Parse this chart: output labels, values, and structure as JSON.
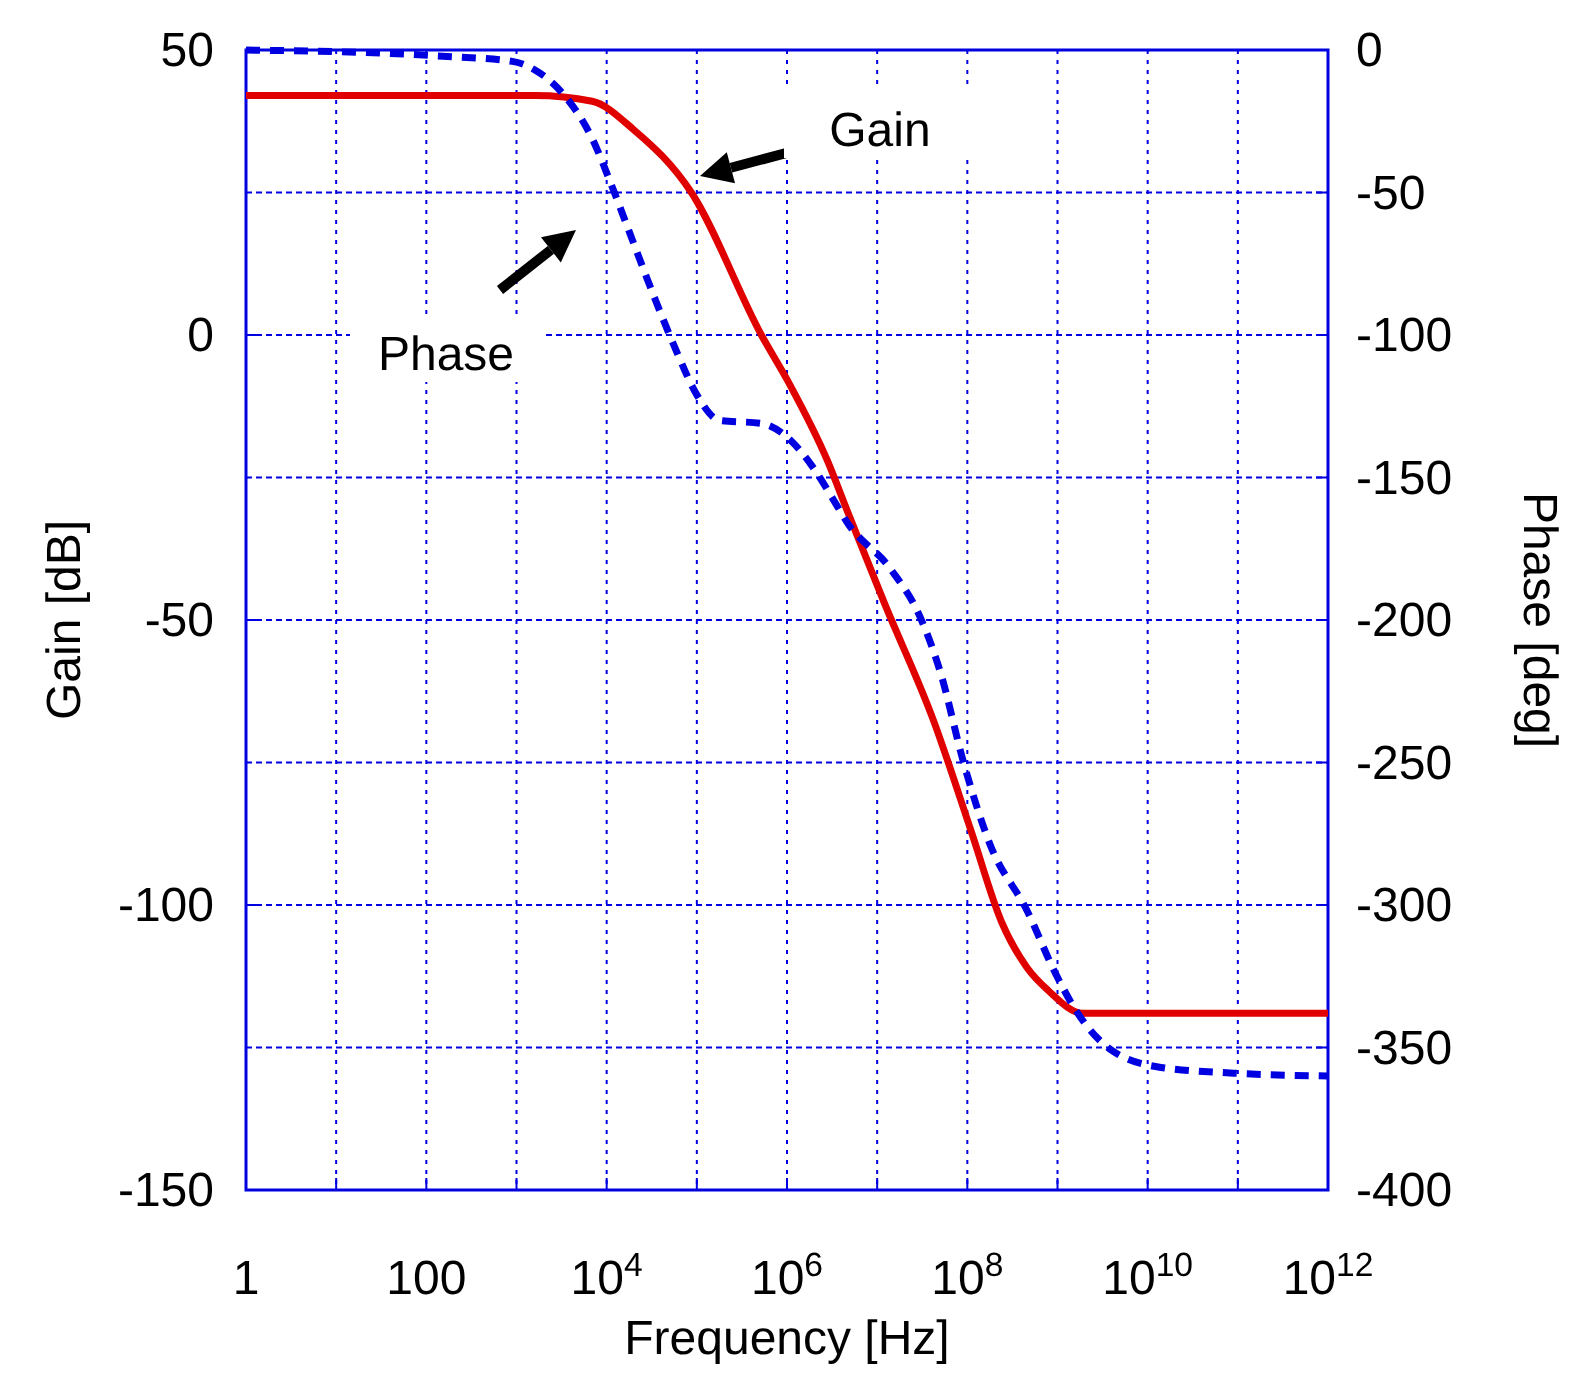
{
  "chart_data": {
    "type": "line",
    "xlabel": "Frequency [Hz]",
    "ylabel": "Gain [dB]",
    "y2label": "Phase [deg]",
    "log": "x",
    "xlim": [
      1,
      1000000000000.0
    ],
    "xticks": [
      1,
      {
        "value": 10,
        "label": null
      },
      100,
      {
        "value": 1000,
        "label": null
      },
      {
        "value": 10000,
        "label": "10$^{4}$"
      },
      {
        "value": 100000,
        "label": null
      },
      {
        "value": 1000000,
        "label": "10$^{6}$"
      },
      {
        "value": 10000000,
        "label": null
      },
      {
        "value": 100000000,
        "label": "10$^{8}$"
      },
      {
        "value": 1000000000,
        "label": null
      },
      {
        "value": 10000000000,
        "label": "10$^{10}$"
      },
      {
        "value": 100000000000,
        "label": null
      },
      {
        "value": 1000000000000,
        "label": "10$^{12}$"
      }
    ],
    "ylim": [
      -150,
      50
    ],
    "yticks": [
      -150,
      -100,
      -50,
      0,
      50
    ],
    "y2lim": [
      -400,
      0
    ],
    "y2ticks": [
      -400,
      -350,
      -300,
      -250,
      -200,
      -150,
      -100,
      -50,
      0
    ],
    "grid": true,
    "line_style": "solid",
    "marker": "none",
    "series": [
      {
        "color": "#e00000",
        "x": [
          1,
          1600,
          6900,
          20000,
          87000,
          520000,
          1100000,
          2800000,
          4700000,
          12000000,
          43000000,
          110000000,
          240000000,
          460000000,
          790000000,
          1900000000,
          7000000000,
          1000000000000
        ],
        "values": [
          42,
          42,
          41,
          36,
          25,
          0,
          -9,
          -22,
          -31,
          -47,
          -68,
          -87,
          -103,
          -111,
          -115,
          -119,
          -119,
          -119
        ]
      },
      {
        "color": "#0000e0",
        "axis": "y2",
        "line_style": "dashed",
        "x": [
          1,
          120,
          900,
          1600,
          3200,
          6900,
          11500,
          20000,
          35000,
          60000,
          100000,
          180000,
          520000,
          1100000,
          1900000,
          3300000,
          4700000,
          14000000,
          30000000,
          51000000,
          89000000,
          180000000,
          460000000,
          950000000,
          1600000000,
          4000000000,
          14000000000,
          90000000000,
          1000000000000
        ],
        "values": [
          0,
          -2,
          -4,
          -7,
          -15,
          -31,
          -48,
          -68,
          -88,
          -106,
          -121,
          -130,
          -131,
          -137,
          -146,
          -158,
          -166,
          -182,
          -199,
          -219,
          -249,
          -279,
          -302,
          -324,
          -337,
          -351,
          -357,
          -359,
          -360
        ]
      }
    ],
    "annotations": [
      "Gain",
      "Phase"
    ]
  }
}
